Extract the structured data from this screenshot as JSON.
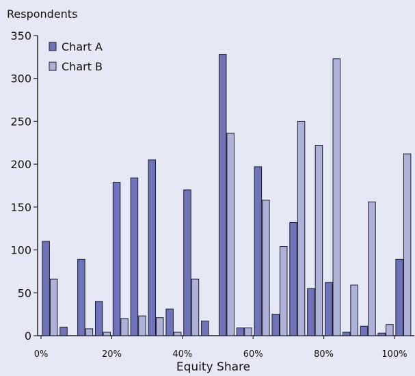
{
  "chart_data": {
    "type": "bar",
    "ylabel": "Respondents",
    "xlabel": "Equity Share",
    "ylim": [
      0,
      350
    ],
    "y_ticks": [
      0,
      50,
      100,
      150,
      200,
      250,
      300,
      350
    ],
    "x_ticks": [
      {
        "value": 0,
        "label": "0%"
      },
      {
        "value": 20,
        "label": "20%"
      },
      {
        "value": 40,
        "label": "40%"
      },
      {
        "value": 60,
        "label": "60%"
      },
      {
        "value": 80,
        "label": "80%"
      },
      {
        "value": 100,
        "label": "100%"
      }
    ],
    "xlim": [
      0,
      102.5
    ],
    "grid": false,
    "legend_position": "top-left",
    "x": [
      2.5,
      7.5,
      12.5,
      17.5,
      22.5,
      27.5,
      32.5,
      37.5,
      42.5,
      47.5,
      52.5,
      57.5,
      62.5,
      67.5,
      72.5,
      77.5,
      82.5,
      87.5,
      92.5,
      97.5,
      102.5
    ],
    "series": [
      {
        "name": "Chart A",
        "color": "#6e74b7",
        "values": [
          110,
          10,
          89,
          40,
          179,
          184,
          205,
          31,
          170,
          17,
          328,
          9,
          197,
          25,
          132,
          55,
          62,
          4,
          11,
          3,
          89
        ]
      },
      {
        "name": "Chart B",
        "color": "#aeb2d9",
        "values": [
          66,
          0,
          8,
          4,
          20,
          23,
          21,
          4,
          66,
          0,
          236,
          9,
          158,
          104,
          250,
          222,
          323,
          59,
          156,
          13,
          212
        ]
      }
    ]
  }
}
